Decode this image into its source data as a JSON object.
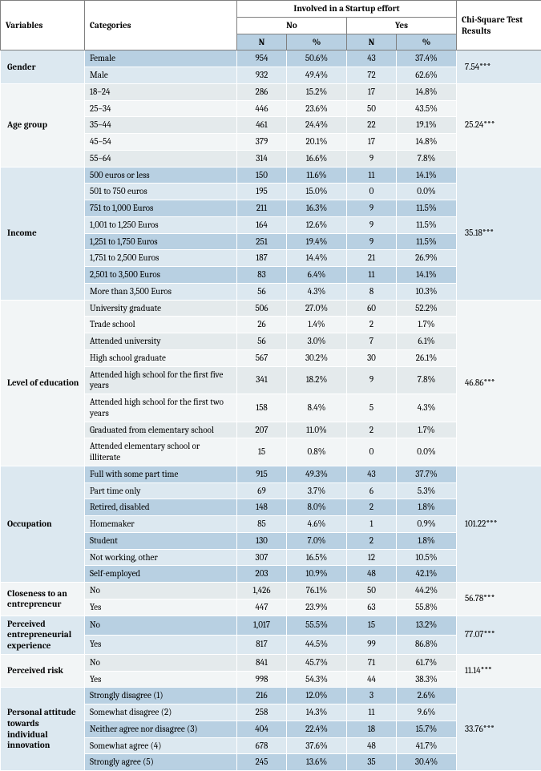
{
  "headers": {
    "variables": "Variables",
    "categories": "Categories",
    "involved": "Involved in a Startup effort",
    "no": "No",
    "yes": "Yes",
    "n": "N",
    "pct": "%",
    "chi": "Chi-Square Test Results"
  },
  "groups": [
    {
      "variable": "Gender",
      "band": "a",
      "chi": "7.54***",
      "rows": [
        {
          "cat": "Female",
          "n_no": "954",
          "p_no": "50.6%",
          "n_yes": "43",
          "p_yes": "37.4%"
        },
        {
          "cat": "Male",
          "n_no": "932",
          "p_no": "49.4%",
          "n_yes": "72",
          "p_yes": "62.6%"
        }
      ]
    },
    {
      "variable": "Age group",
      "band": "b",
      "chi": "25.24***",
      "rows": [
        {
          "cat": "18–24",
          "n_no": "286",
          "p_no": "15.2%",
          "n_yes": "17",
          "p_yes": "14.8%"
        },
        {
          "cat": "25–34",
          "n_no": "446",
          "p_no": "23.6%",
          "n_yes": "50",
          "p_yes": "43.5%"
        },
        {
          "cat": "35–44",
          "n_no": "461",
          "p_no": "24.4%",
          "n_yes": "22",
          "p_yes": "19.1%"
        },
        {
          "cat": "45–54",
          "n_no": "379",
          "p_no": "20.1%",
          "n_yes": "17",
          "p_yes": "14.8%"
        },
        {
          "cat": "55–64",
          "n_no": "314",
          "p_no": "16.6%",
          "n_yes": "9",
          "p_yes": "7.8%"
        }
      ]
    },
    {
      "variable": "Income",
      "band": "a",
      "chi": "35.18***",
      "rows": [
        {
          "cat": "500 euros or less",
          "n_no": "150",
          "p_no": "11.6%",
          "n_yes": "11",
          "p_yes": "14.1%"
        },
        {
          "cat": "501 to 750 euros",
          "n_no": "195",
          "p_no": "15.0%",
          "n_yes": "0",
          "p_yes": "0.0%"
        },
        {
          "cat": "751 to 1,000 Euros",
          "n_no": "211",
          "p_no": "16.3%",
          "n_yes": "9",
          "p_yes": "11.5%"
        },
        {
          "cat": "1,001 to 1,250 Euros",
          "n_no": "164",
          "p_no": "12.6%",
          "n_yes": "9",
          "p_yes": "11.5%"
        },
        {
          "cat": "1,251 to 1,750 Euros",
          "n_no": "251",
          "p_no": "19.4%",
          "n_yes": "9",
          "p_yes": "11.5%"
        },
        {
          "cat": "1,751 to 2,500 Euros",
          "n_no": "187",
          "p_no": "14.4%",
          "n_yes": "21",
          "p_yes": "26.9%"
        },
        {
          "cat": "2,501 to 3,500 Euros",
          "n_no": "83",
          "p_no": "6.4%",
          "n_yes": "11",
          "p_yes": "14.1%"
        },
        {
          "cat": "More than 3,500 Euros",
          "n_no": "56",
          "p_no": "4.3%",
          "n_yes": "8",
          "p_yes": "10.3%"
        }
      ]
    },
    {
      "variable": "Level of education",
      "band": "b",
      "chi": "46.86***",
      "rows": [
        {
          "cat": "University graduate",
          "n_no": "506",
          "p_no": "27.0%",
          "n_yes": "60",
          "p_yes": "52.2%"
        },
        {
          "cat": "Trade school",
          "n_no": "26",
          "p_no": "1.4%",
          "n_yes": "2",
          "p_yes": "1.7%"
        },
        {
          "cat": "Attended university",
          "n_no": "56",
          "p_no": "3.0%",
          "n_yes": "7",
          "p_yes": "6.1%"
        },
        {
          "cat": "High school graduate",
          "n_no": "567",
          "p_no": "30.2%",
          "n_yes": "30",
          "p_yes": "26.1%"
        },
        {
          "cat": "Attended high school for the first five years",
          "n_no": "341",
          "p_no": "18.2%",
          "n_yes": "9",
          "p_yes": "7.8%"
        },
        {
          "cat": "Attended high school for the first two years",
          "n_no": "158",
          "p_no": "8.4%",
          "n_yes": "5",
          "p_yes": "4.3%"
        },
        {
          "cat": "Graduated from elementary school",
          "n_no": "207",
          "p_no": "11.0%",
          "n_yes": "2",
          "p_yes": "1.7%"
        },
        {
          "cat": "Attended elementary school or illiterate",
          "n_no": "15",
          "p_no": "0.8%",
          "n_yes": "0",
          "p_yes": "0.0%"
        }
      ]
    },
    {
      "variable": "Occupation",
      "band": "a",
      "chi": "101.22***",
      "rows": [
        {
          "cat": "Full with some part time",
          "n_no": "915",
          "p_no": "49.3%",
          "n_yes": "43",
          "p_yes": "37.7%"
        },
        {
          "cat": "Part time only",
          "n_no": "69",
          "p_no": "3.7%",
          "n_yes": "6",
          "p_yes": "5.3%"
        },
        {
          "cat": "Retired, disabled",
          "n_no": "148",
          "p_no": "8.0%",
          "n_yes": "2",
          "p_yes": "1.8%"
        },
        {
          "cat": "Homemaker",
          "n_no": "85",
          "p_no": "4.6%",
          "n_yes": "1",
          "p_yes": "0.9%"
        },
        {
          "cat": "Student",
          "n_no": "130",
          "p_no": "7.0%",
          "n_yes": "2",
          "p_yes": "1.8%"
        },
        {
          "cat": "Not working, other",
          "n_no": "307",
          "p_no": "16.5%",
          "n_yes": "12",
          "p_yes": "10.5%"
        },
        {
          "cat": "Self-employed",
          "n_no": "203",
          "p_no": "10.9%",
          "n_yes": "48",
          "p_yes": "42.1%"
        }
      ]
    },
    {
      "variable": "Closeness to an entrepreneur",
      "band": "b",
      "chi": "56.78***",
      "rows": [
        {
          "cat": "No",
          "n_no": "1,426",
          "p_no": "76.1%",
          "n_yes": "50",
          "p_yes": "44.2%"
        },
        {
          "cat": "Yes",
          "n_no": "447",
          "p_no": "23.9%",
          "n_yes": "63",
          "p_yes": "55.8%"
        }
      ]
    },
    {
      "variable": "Perceived entrepreneurial experience",
      "band": "a",
      "chi": "77.07***",
      "rows": [
        {
          "cat": "No",
          "n_no": "1,017",
          "p_no": "55.5%",
          "n_yes": "15",
          "p_yes": "13.2%"
        },
        {
          "cat": "Yes",
          "n_no": "817",
          "p_no": "44.5%",
          "n_yes": "99",
          "p_yes": "86.8%"
        }
      ]
    },
    {
      "variable": "Perceived risk",
      "band": "b",
      "chi": "11.14***",
      "rows": [
        {
          "cat": "No",
          "n_no": "841",
          "p_no": "45.7%",
          "n_yes": "71",
          "p_yes": "61.7%"
        },
        {
          "cat": "Yes",
          "n_no": "998",
          "p_no": "54.3%",
          "n_yes": "44",
          "p_yes": "38.3%"
        }
      ]
    },
    {
      "variable": "Personal attitude towards individual innovation",
      "band": "a",
      "chi": "33.76***",
      "rows": [
        {
          "cat": "Strongly disagree (1)",
          "n_no": "216",
          "p_no": "12.0%",
          "n_yes": "3",
          "p_yes": "2.6%"
        },
        {
          "cat": "Somewhat disagree (2)",
          "n_no": "258",
          "p_no": "14.3%",
          "n_yes": "11",
          "p_yes": "9.6%"
        },
        {
          "cat": "Neither agree nor disagree (3)",
          "n_no": "404",
          "p_no": "22.4%",
          "n_yes": "18",
          "p_yes": "15.7%"
        },
        {
          "cat": "Somewhat agree (4)",
          "n_no": "678",
          "p_no": "37.6%",
          "n_yes": "48",
          "p_yes": "41.7%"
        },
        {
          "cat": "Strongly agree (5)",
          "n_no": "245",
          "p_no": "13.6%",
          "n_yes": "35",
          "p_yes": "30.4%"
        }
      ]
    }
  ]
}
